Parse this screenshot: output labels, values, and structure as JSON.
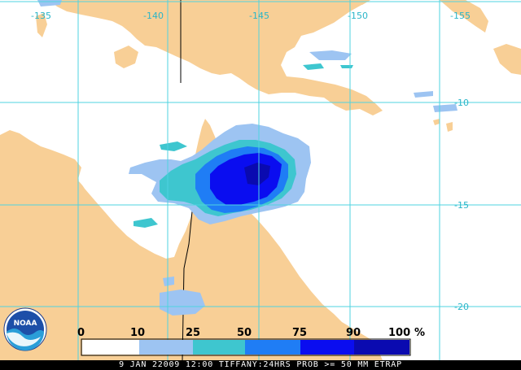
{
  "map": {
    "longitude_labels": [
      "-135",
      "-140",
      "-145",
      "-150",
      "-155"
    ],
    "latitude_labels": [
      "-10",
      "-15",
      "-20"
    ],
    "land_color": "#f8cf96",
    "ocean_color": "#ffffff",
    "grid_color": "#4fd3e0",
    "border_color": "#000000"
  },
  "legend": {
    "labels": [
      "0",
      "10",
      "25",
      "50",
      "75",
      "90",
      "100",
      "%"
    ],
    "bins": [
      {
        "range": "0-10",
        "color": "#ffffff"
      },
      {
        "range": "10-25",
        "color": "#9dc4f2"
      },
      {
        "range": "25-50",
        "color": "#3ec6cf"
      },
      {
        "range": "50-75",
        "color": "#1f7df5"
      },
      {
        "range": "75-90",
        "color": "#0a0df0"
      },
      {
        "range": "90-100",
        "color": "#0a0ab0"
      }
    ]
  },
  "caption": "9 JAN 22009 12:00 TIFFANY:24HRS PROB >= 50 MM ETRAP",
  "logo": {
    "text": "NOAA",
    "icon": "noaa-logo-icon"
  }
}
